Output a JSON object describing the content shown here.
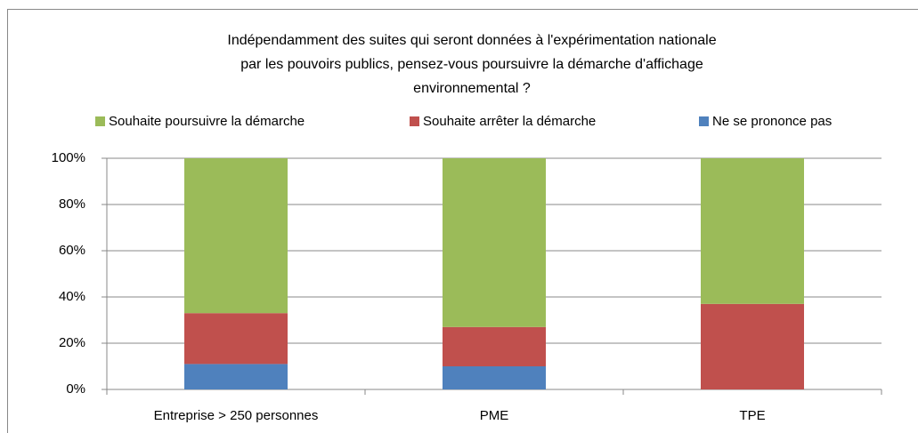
{
  "chart_data": {
    "type": "stacked_bar",
    "title": [
      "Indépendamment des suites qui seront données à l'expérimentation nationale",
      "par les pouvoirs publics, pensez-vous poursuivre la démarche d'affichage",
      "environnemental ?"
    ],
    "categories": [
      "Entreprise > 250 personnes",
      "PME",
      "TPE"
    ],
    "series": [
      {
        "name": "Souhaite poursuivre la démarche",
        "color": "#9bbb59",
        "values": [
          67,
          73,
          63
        ]
      },
      {
        "name": "Souhaite arrêter la démarche",
        "color": "#c0504d",
        "values": [
          22,
          17,
          37
        ]
      },
      {
        "name": "Ne se prononce pas",
        "color": "#4f81bd",
        "values": [
          11,
          10,
          0
        ]
      }
    ],
    "ylim": [
      0,
      100
    ],
    "yticks": [
      {
        "value": 0,
        "label": "0%"
      },
      {
        "value": 20,
        "label": "20%"
      },
      {
        "value": 40,
        "label": "40%"
      },
      {
        "value": 60,
        "label": "60%"
      },
      {
        "value": 80,
        "label": "80%"
      },
      {
        "value": 100,
        "label": "100%"
      }
    ],
    "grid": true,
    "legend": "top"
  }
}
